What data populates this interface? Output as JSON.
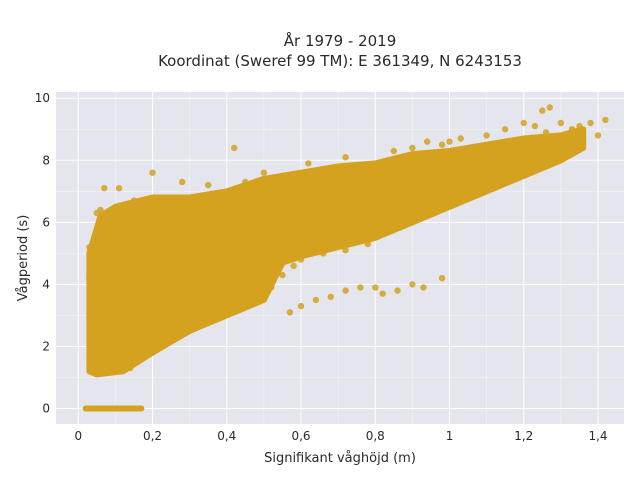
{
  "chart_data": {
    "type": "scatter",
    "title_line1": "År 1979 - 2019",
    "title_line2": "Koordinat (Sweref 99 TM): E 361349, N 6243153",
    "xlabel": "Signifikant våghöjd (m)",
    "ylabel": "Vågperiod (s)",
    "xlim": [
      -0.06,
      1.47
    ],
    "ylim": [
      -0.5,
      10.2
    ],
    "grid": true,
    "marker_color": "#d4a21f",
    "plot_bg": "#e5e5ee",
    "grid_color": "#ffffff",
    "x_ticks": [
      {
        "value": 0,
        "label": "0"
      },
      {
        "value": 0.2,
        "label": "0,2"
      },
      {
        "value": 0.4,
        "label": "0,4"
      },
      {
        "value": 0.6,
        "label": "0,6"
      },
      {
        "value": 0.8,
        "label": "0,8"
      },
      {
        "value": 1,
        "label": "1"
      },
      {
        "value": 1.2,
        "label": "1,2"
      },
      {
        "value": 1.4,
        "label": "1,4"
      }
    ],
    "y_ticks": [
      {
        "value": 0,
        "label": "0"
      },
      {
        "value": 2,
        "label": "2"
      },
      {
        "value": 4,
        "label": "4"
      },
      {
        "value": 6,
        "label": "6"
      },
      {
        "value": 8,
        "label": "8"
      },
      {
        "value": 10,
        "label": "10"
      }
    ],
    "envelope": {
      "upper": [
        [
          0.03,
          5.0
        ],
        [
          0.04,
          5.4
        ],
        [
          0.06,
          6.2
        ],
        [
          0.1,
          6.5
        ],
        [
          0.2,
          6.8
        ],
        [
          0.3,
          6.8
        ],
        [
          0.4,
          7.0
        ],
        [
          0.5,
          7.4
        ],
        [
          0.6,
          7.6
        ],
        [
          0.7,
          7.8
        ],
        [
          0.8,
          7.9
        ],
        [
          0.9,
          8.2
        ],
        [
          1.0,
          8.3
        ],
        [
          1.1,
          8.5
        ],
        [
          1.2,
          8.7
        ],
        [
          1.3,
          8.8
        ],
        [
          1.36,
          9.0
        ]
      ],
      "lower": [
        [
          1.36,
          8.4
        ],
        [
          1.3,
          8.0
        ],
        [
          1.2,
          7.5
        ],
        [
          1.1,
          7.0
        ],
        [
          1.0,
          6.5
        ],
        [
          0.9,
          6.0
        ],
        [
          0.8,
          5.5
        ],
        [
          0.7,
          5.2
        ],
        [
          0.6,
          4.9
        ],
        [
          0.55,
          4.7
        ],
        [
          0.5,
          3.5
        ],
        [
          0.4,
          3.0
        ],
        [
          0.3,
          2.5
        ],
        [
          0.2,
          1.8
        ],
        [
          0.12,
          1.2
        ],
        [
          0.05,
          1.1
        ],
        [
          0.03,
          1.2
        ]
      ]
    },
    "zero_band": {
      "x_from": 0.02,
      "x_to": 0.17,
      "y": 0
    },
    "points": [
      [
        0.07,
        7.1
      ],
      [
        0.11,
        7.1
      ],
      [
        0.2,
        7.6
      ],
      [
        0.42,
        8.4
      ],
      [
        0.05,
        6.3
      ],
      [
        0.06,
        6.4
      ],
      [
        0.28,
        7.3
      ],
      [
        0.35,
        7.2
      ],
      [
        0.5,
        7.6
      ],
      [
        0.62,
        7.9
      ],
      [
        0.7,
        7.6
      ],
      [
        0.72,
        8.1
      ],
      [
        0.85,
        8.3
      ],
      [
        0.9,
        8.4
      ],
      [
        0.94,
        8.6
      ],
      [
        0.98,
        8.5
      ],
      [
        1.0,
        8.6
      ],
      [
        1.03,
        8.7
      ],
      [
        1.1,
        8.8
      ],
      [
        1.15,
        9.0
      ],
      [
        1.2,
        9.2
      ],
      [
        1.23,
        9.1
      ],
      [
        1.25,
        9.6
      ],
      [
        1.27,
        9.7
      ],
      [
        1.3,
        9.2
      ],
      [
        1.33,
        9.0
      ],
      [
        1.35,
        9.1
      ],
      [
        1.38,
        9.2
      ],
      [
        1.42,
        9.3
      ],
      [
        1.4,
        8.8
      ],
      [
        1.3,
        8.5
      ],
      [
        1.26,
        8.9
      ],
      [
        1.22,
        8.3
      ],
      [
        1.18,
        7.8
      ],
      [
        1.12,
        7.5
      ],
      [
        1.08,
        7.2
      ],
      [
        1.0,
        6.7
      ],
      [
        0.95,
        6.3
      ],
      [
        0.88,
        5.9
      ],
      [
        0.78,
        5.3
      ],
      [
        0.72,
        5.1
      ],
      [
        0.66,
        5.0
      ],
      [
        0.6,
        4.8
      ],
      [
        0.58,
        4.6
      ],
      [
        0.55,
        4.3
      ],
      [
        0.52,
        3.9
      ],
      [
        0.46,
        3.5
      ],
      [
        0.42,
        3.3
      ],
      [
        0.38,
        3.1
      ],
      [
        0.33,
        2.8
      ],
      [
        0.28,
        2.4
      ],
      [
        0.24,
        2.1
      ],
      [
        0.2,
        1.8
      ],
      [
        0.16,
        1.5
      ],
      [
        0.14,
        1.3
      ],
      [
        0.12,
        1.25
      ],
      [
        0.1,
        1.2
      ],
      [
        0.08,
        1.15
      ],
      [
        0.06,
        1.2
      ],
      [
        0.04,
        1.3
      ],
      [
        0.03,
        1.5
      ],
      [
        0.03,
        4.2
      ],
      [
        0.03,
        5.2
      ],
      [
        0.08,
        6.0
      ],
      [
        0.15,
        6.7
      ],
      [
        0.25,
        6.6
      ],
      [
        0.45,
        7.3
      ],
      [
        0.55,
        7.5
      ],
      [
        0.8,
        3.9
      ],
      [
        0.82,
        3.7
      ],
      [
        0.86,
        3.8
      ],
      [
        0.9,
        4.0
      ],
      [
        0.93,
        3.9
      ],
      [
        0.98,
        4.2
      ],
      [
        0.68,
        3.6
      ],
      [
        0.72,
        3.8
      ],
      [
        0.76,
        3.9
      ],
      [
        0.64,
        3.5
      ],
      [
        0.6,
        3.3
      ],
      [
        0.57,
        3.1
      ],
      [
        1.02,
        7.0
      ],
      [
        1.06,
        7.4
      ],
      [
        1.1,
        7.8
      ],
      [
        1.14,
        8.1
      ],
      [
        1.18,
        8.2
      ],
      [
        1.24,
        8.6
      ],
      [
        1.28,
        8.7
      ],
      [
        1.34,
        8.9
      ],
      [
        0.98,
        7.9
      ],
      [
        0.93,
        7.5
      ],
      [
        0.87,
        7.2
      ],
      [
        0.82,
        7.0
      ],
      [
        0.77,
        6.8
      ],
      [
        0.73,
        6.5
      ],
      [
        0.65,
        6.2
      ],
      [
        0.6,
        6.0
      ]
    ]
  }
}
